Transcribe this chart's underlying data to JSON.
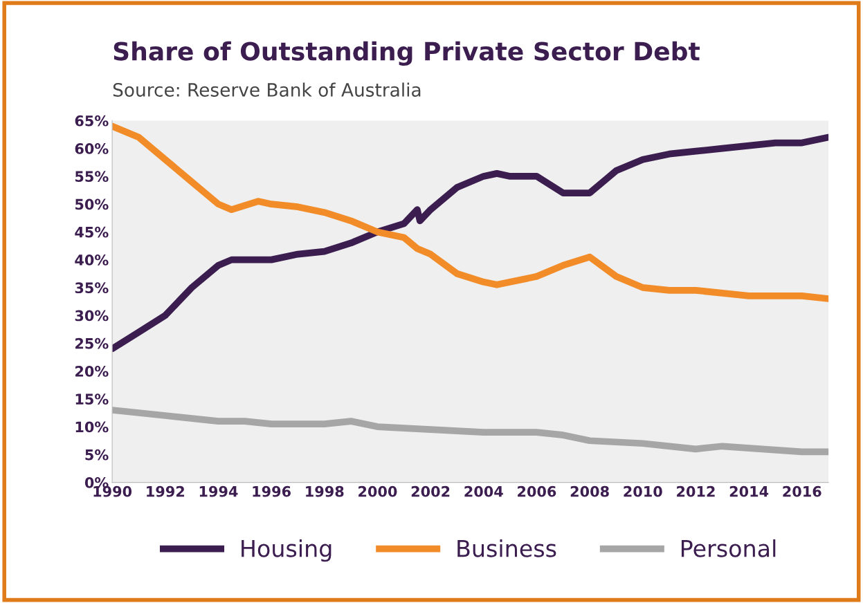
{
  "chart_data": {
    "type": "line",
    "title": "Share of Outstanding Private Sector Debt",
    "subtitle": "Source: Reserve Bank of Australia",
    "xlim": [
      1990,
      2017
    ],
    "xticks": [
      1990,
      1992,
      1994,
      1996,
      1998,
      2000,
      2002,
      2004,
      2006,
      2008,
      2010,
      2012,
      2014,
      2016
    ],
    "ylim": [
      0,
      65
    ],
    "yticks": [
      {
        "value": 0,
        "label": "0%"
      },
      {
        "value": 5,
        "label": "5%"
      },
      {
        "value": 10,
        "label": "10%"
      },
      {
        "value": 15,
        "label": "15%"
      },
      {
        "value": 20,
        "label": "20%"
      },
      {
        "value": 25,
        "label": "25%"
      },
      {
        "value": 30,
        "label": "30%"
      },
      {
        "value": 35,
        "label": "35%"
      },
      {
        "value": 40,
        "label": "40%"
      },
      {
        "value": 45,
        "label": "45%"
      },
      {
        "value": 50,
        "label": "50%"
      },
      {
        "value": 55,
        "label": "55%"
      },
      {
        "value": 60,
        "label": "60%"
      },
      {
        "value": 65,
        "label": "65%"
      }
    ],
    "grid": false,
    "legend": "bottom",
    "marker": "none",
    "line_style": "solid",
    "series": [
      {
        "name": "Housing",
        "color": "#3b1d4f",
        "x": [
          1990,
          1991,
          1992,
          1993,
          1994,
          1994.5,
          1995,
          1996,
          1997,
          1998,
          1999,
          2000,
          2001,
          2001.5,
          2001.6,
          2002,
          2003,
          2004,
          2004.5,
          2005,
          2006,
          2007,
          2007.5,
          2008,
          2009,
          2010,
          2011,
          2012,
          2013,
          2014,
          2015,
          2016,
          2017
        ],
        "values": [
          24,
          27,
          30,
          35,
          39,
          40,
          40,
          40,
          41,
          41.5,
          43,
          45,
          46.5,
          49,
          47,
          49,
          53,
          55,
          55.5,
          55,
          55,
          52,
          52,
          52,
          56,
          58,
          59,
          59.5,
          60,
          60.5,
          61,
          61,
          62
        ]
      },
      {
        "name": "Business",
        "color": "#f28c28",
        "x": [
          1990,
          1991,
          1992,
          1993,
          1994,
          1994.5,
          1995.5,
          1996,
          1997,
          1998,
          1999,
          2000,
          2001,
          2001.5,
          2002,
          2003,
          2004,
          2004.5,
          2005,
          2006,
          2007,
          2008,
          2009,
          2010,
          2011,
          2012,
          2013,
          2014,
          2015,
          2016,
          2017
        ],
        "values": [
          64,
          62,
          58,
          54,
          50,
          49,
          50.5,
          50,
          49.5,
          48.5,
          47,
          45,
          44,
          42,
          41,
          37.5,
          36,
          35.5,
          36,
          37,
          39,
          40.5,
          37,
          35,
          34.5,
          34.5,
          34,
          33.5,
          33.5,
          33.5,
          33
        ]
      },
      {
        "name": "Personal",
        "color": "#a6a6a6",
        "x": [
          1990,
          1992,
          1994,
          1995,
          1996,
          1998,
          1999,
          2000,
          2002,
          2004,
          2006,
          2007,
          2008,
          2010,
          2012,
          2013,
          2016,
          2017
        ],
        "values": [
          13,
          12,
          11,
          11,
          10.5,
          10.5,
          11,
          10,
          9.5,
          9,
          9,
          8.5,
          7.5,
          7,
          6,
          6.5,
          5.5,
          5.5
        ]
      }
    ]
  }
}
